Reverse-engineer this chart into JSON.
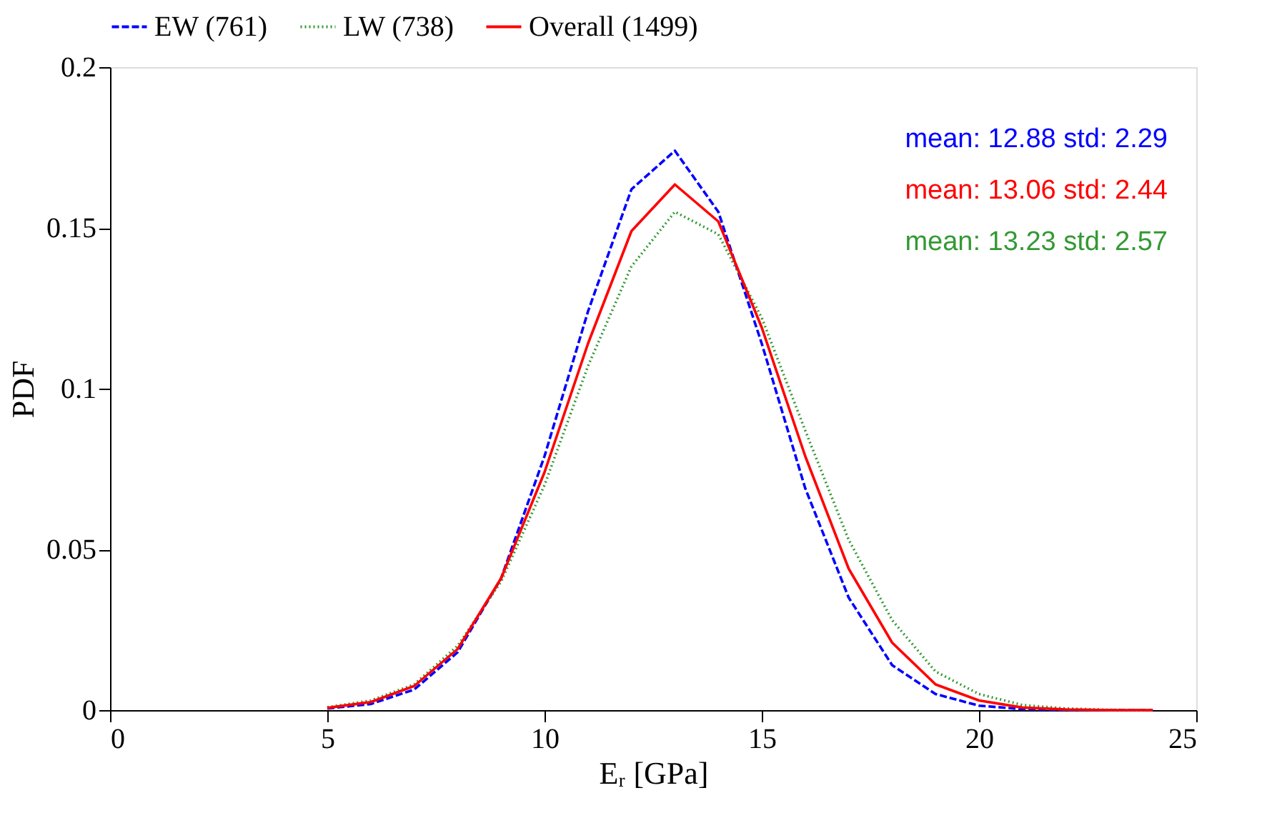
{
  "chart_data": {
    "type": "line",
    "xlabel": "Eᵣ [GPa]",
    "ylabel": "PDF",
    "x": [
      5,
      6,
      7,
      8,
      9,
      10,
      11,
      12,
      13,
      14,
      15,
      16,
      17,
      18,
      19,
      20,
      21,
      22,
      23,
      24
    ],
    "series": [
      {
        "name": "EW (761)",
        "color": "#0000ff",
        "line_style": "dashed",
        "values": [
          0.0005,
          0.0019,
          0.0064,
          0.018,
          0.041,
          0.079,
          0.124,
          0.162,
          0.174,
          0.155,
          0.114,
          0.069,
          0.035,
          0.014,
          0.005,
          0.0014,
          0.0003,
          0,
          0,
          0
        ]
      },
      {
        "name": "LW (738)",
        "color": "#339933",
        "line_style": "dotted",
        "values": [
          0.0009,
          0.003,
          0.008,
          0.02,
          0.04,
          0.07,
          0.107,
          0.138,
          0.155,
          0.148,
          0.122,
          0.087,
          0.053,
          0.028,
          0.012,
          0.005,
          0.0016,
          0.0005,
          0.0001,
          0
        ]
      },
      {
        "name": "Overall (1499)",
        "color": "#ff0000",
        "line_style": "solid",
        "values": [
          0.0007,
          0.0025,
          0.0075,
          0.019,
          0.041,
          0.074,
          0.114,
          0.149,
          0.1635,
          0.152,
          0.119,
          0.079,
          0.044,
          0.021,
          0.008,
          0.003,
          0.0008,
          0.0002,
          0,
          0
        ]
      }
    ],
    "annotations": [
      "mean: 12.88 std: 2.29",
      "mean: 13.06 std: 2.44",
      "mean: 13.23 std: 2.57"
    ],
    "xlim": [
      0,
      25
    ],
    "xticks": [
      0,
      5,
      10,
      15,
      20,
      25
    ],
    "ylim": [
      0,
      0.2
    ],
    "yticks": [
      0,
      0.05,
      0.1,
      0.15,
      0.2
    ],
    "grid": false,
    "legend": "top",
    "marker": "none"
  }
}
